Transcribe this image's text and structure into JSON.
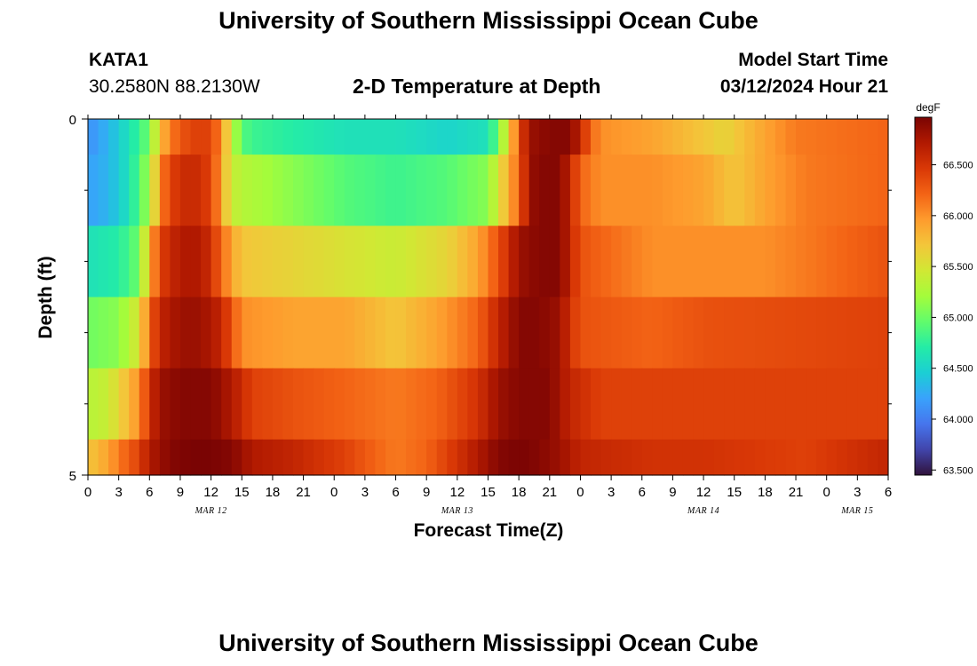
{
  "page": {
    "title": "University of Southern Mississippi Ocean Cube",
    "title_bottom": "University of Southern Mississippi Ocean Cube",
    "station": "KATA1",
    "location": "30.2580N  88.2130W",
    "subtitle": "2-D Temperature at Depth",
    "model_start_label": "Model Start Time",
    "model_start_value": "03/12/2024 Hour 21"
  },
  "chart_data": {
    "type": "heatmap",
    "title": "2-D Temperature at Depth",
    "xlabel": "Forecast Time(Z)",
    "ylabel": "Depth (ft)",
    "units": "degF",
    "y_range": [
      0,
      5
    ],
    "y_tick_labels": [
      "0",
      "5"
    ],
    "x_tick_labels": [
      "0",
      "3",
      "6",
      "9",
      "12",
      "15",
      "18",
      "21",
      "0",
      "3",
      "6",
      "9",
      "12",
      "15",
      "18",
      "21",
      "0",
      "3",
      "6",
      "9",
      "12",
      "15",
      "18",
      "21",
      "0",
      "3",
      "6"
    ],
    "x_hours_range": [
      0,
      78
    ],
    "date_labels": [
      {
        "text": "MAR 12",
        "hour": 12
      },
      {
        "text": "MAR 13",
        "hour": 36
      },
      {
        "text": "MAR 14",
        "hour": 60
      },
      {
        "text": "MAR 15",
        "hour": 75
      }
    ],
    "colorbar": {
      "min": 63.45,
      "max": 66.95,
      "tick_values": [
        63.5,
        64.0,
        64.5,
        65.0,
        65.5,
        66.0,
        66.5
      ],
      "tick_labels": [
        "63.500",
        "64.000",
        "64.500",
        "65.000",
        "65.500",
        "66.000",
        "66.500"
      ],
      "stops": [
        "#30123b",
        "#4145ab",
        "#4675ed",
        "#39a2fc",
        "#1bcfd4",
        "#24eca6",
        "#61fc6c",
        "#a4fc3b",
        "#d1e834",
        "#f3c63a",
        "#fe9b2d",
        "#f36315",
        "#d93806",
        "#b11901",
        "#7a0403"
      ]
    },
    "depth_rows": [
      {
        "depth_ft": 0.0,
        "thickness_ft": 0.5,
        "profile": [
          [
            0,
            64.1
          ],
          [
            2,
            64.3
          ],
          [
            4,
            64.6
          ],
          [
            6,
            65.0
          ],
          [
            7,
            65.7
          ],
          [
            8,
            66.1
          ],
          [
            10,
            66.4
          ],
          [
            12,
            66.4
          ],
          [
            13,
            66.0
          ],
          [
            14,
            65.4
          ],
          [
            15,
            64.9
          ],
          [
            16,
            64.8
          ],
          [
            20,
            64.7
          ],
          [
            25,
            64.6
          ],
          [
            30,
            64.6
          ],
          [
            35,
            64.5
          ],
          [
            39,
            64.6
          ],
          [
            40,
            65.0
          ],
          [
            41,
            65.6
          ],
          [
            42,
            66.3
          ],
          [
            43,
            66.8
          ],
          [
            45,
            66.9
          ],
          [
            47,
            66.9
          ],
          [
            48,
            66.6
          ],
          [
            49,
            66.2
          ],
          [
            50,
            66.0
          ],
          [
            55,
            65.9
          ],
          [
            60,
            65.7
          ],
          [
            62,
            65.6
          ],
          [
            66,
            65.9
          ],
          [
            69,
            66.1
          ],
          [
            78,
            66.2
          ]
        ]
      },
      {
        "depth_ft": 0.5,
        "thickness_ft": 1.0,
        "profile": [
          [
            0,
            64.2
          ],
          [
            2,
            64.3
          ],
          [
            4,
            64.6
          ],
          [
            6,
            65.2
          ],
          [
            7,
            66.0
          ],
          [
            8,
            66.4
          ],
          [
            10,
            66.6
          ],
          [
            12,
            66.4
          ],
          [
            13,
            65.9
          ],
          [
            14,
            65.4
          ],
          [
            15,
            65.3
          ],
          [
            20,
            65.1
          ],
          [
            25,
            64.9
          ],
          [
            30,
            64.8
          ],
          [
            35,
            64.9
          ],
          [
            39,
            65.1
          ],
          [
            40,
            65.5
          ],
          [
            42,
            66.2
          ],
          [
            43,
            66.8
          ],
          [
            44,
            66.9
          ],
          [
            46,
            66.9
          ],
          [
            47,
            66.6
          ],
          [
            48,
            66.2
          ],
          [
            50,
            66.0
          ],
          [
            55,
            66.0
          ],
          [
            60,
            65.9
          ],
          [
            63,
            65.7
          ],
          [
            66,
            65.9
          ],
          [
            70,
            66.1
          ],
          [
            78,
            66.2
          ]
        ]
      },
      {
        "depth_ft": 1.5,
        "thickness_ft": 1.0,
        "profile": [
          [
            0,
            64.6
          ],
          [
            3,
            64.7
          ],
          [
            5,
            65.0
          ],
          [
            6,
            65.8
          ],
          [
            7,
            66.4
          ],
          [
            9,
            66.7
          ],
          [
            11,
            66.7
          ],
          [
            12,
            66.5
          ],
          [
            13,
            66.2
          ],
          [
            14,
            65.9
          ],
          [
            15,
            65.7
          ],
          [
            20,
            65.6
          ],
          [
            25,
            65.5
          ],
          [
            30,
            65.4
          ],
          [
            35,
            65.6
          ],
          [
            38,
            65.9
          ],
          [
            40,
            66.3
          ],
          [
            42,
            66.8
          ],
          [
            44,
            66.9
          ],
          [
            46,
            66.9
          ],
          [
            47,
            66.6
          ],
          [
            48,
            66.3
          ],
          [
            50,
            66.2
          ],
          [
            55,
            66.0
          ],
          [
            60,
            66.0
          ],
          [
            66,
            66.0
          ],
          [
            70,
            66.1
          ],
          [
            78,
            66.3
          ]
        ]
      },
      {
        "depth_ft": 2.5,
        "thickness_ft": 1.0,
        "profile": [
          [
            0,
            65.0
          ],
          [
            3,
            65.1
          ],
          [
            5,
            65.5
          ],
          [
            6,
            66.2
          ],
          [
            7,
            66.6
          ],
          [
            9,
            66.8
          ],
          [
            11,
            66.8
          ],
          [
            13,
            66.6
          ],
          [
            14,
            66.3
          ],
          [
            15,
            66.0
          ],
          [
            20,
            65.9
          ],
          [
            25,
            65.9
          ],
          [
            30,
            65.7
          ],
          [
            34,
            65.9
          ],
          [
            38,
            66.2
          ],
          [
            40,
            66.6
          ],
          [
            42,
            66.9
          ],
          [
            44,
            66.9
          ],
          [
            46,
            66.8
          ],
          [
            47,
            66.5
          ],
          [
            48,
            66.3
          ],
          [
            55,
            66.2
          ],
          [
            60,
            66.3
          ],
          [
            78,
            66.4
          ]
        ]
      },
      {
        "depth_ft": 3.5,
        "thickness_ft": 1.0,
        "profile": [
          [
            0,
            65.3
          ],
          [
            2,
            65.4
          ],
          [
            3,
            65.6
          ],
          [
            5,
            66.0
          ],
          [
            6,
            66.5
          ],
          [
            7,
            66.8
          ],
          [
            9,
            66.9
          ],
          [
            12,
            66.9
          ],
          [
            14,
            66.7
          ],
          [
            16,
            66.4
          ],
          [
            20,
            66.3
          ],
          [
            25,
            66.2
          ],
          [
            30,
            66.1
          ],
          [
            34,
            66.2
          ],
          [
            38,
            66.5
          ],
          [
            40,
            66.8
          ],
          [
            42,
            66.9
          ],
          [
            45,
            66.9
          ],
          [
            47,
            66.6
          ],
          [
            50,
            66.4
          ],
          [
            60,
            66.4
          ],
          [
            78,
            66.4
          ]
        ]
      },
      {
        "depth_ft": 4.5,
        "thickness_ft": 0.5,
        "profile": [
          [
            0,
            65.7
          ],
          [
            2,
            65.9
          ],
          [
            3,
            66.1
          ],
          [
            5,
            66.4
          ],
          [
            6,
            66.7
          ],
          [
            8,
            66.9
          ],
          [
            10,
            66.95
          ],
          [
            12,
            66.95
          ],
          [
            14,
            66.9
          ],
          [
            16,
            66.7
          ],
          [
            20,
            66.6
          ],
          [
            25,
            66.4
          ],
          [
            28,
            66.2
          ],
          [
            30,
            66.1
          ],
          [
            33,
            66.2
          ],
          [
            35,
            66.4
          ],
          [
            38,
            66.7
          ],
          [
            40,
            66.9
          ],
          [
            42,
            66.95
          ],
          [
            44,
            66.9
          ],
          [
            46,
            66.8
          ],
          [
            48,
            66.6
          ],
          [
            55,
            66.5
          ],
          [
            60,
            66.5
          ],
          [
            70,
            66.4
          ],
          [
            78,
            66.6
          ]
        ]
      }
    ]
  },
  "colorbar_unit": "degF"
}
